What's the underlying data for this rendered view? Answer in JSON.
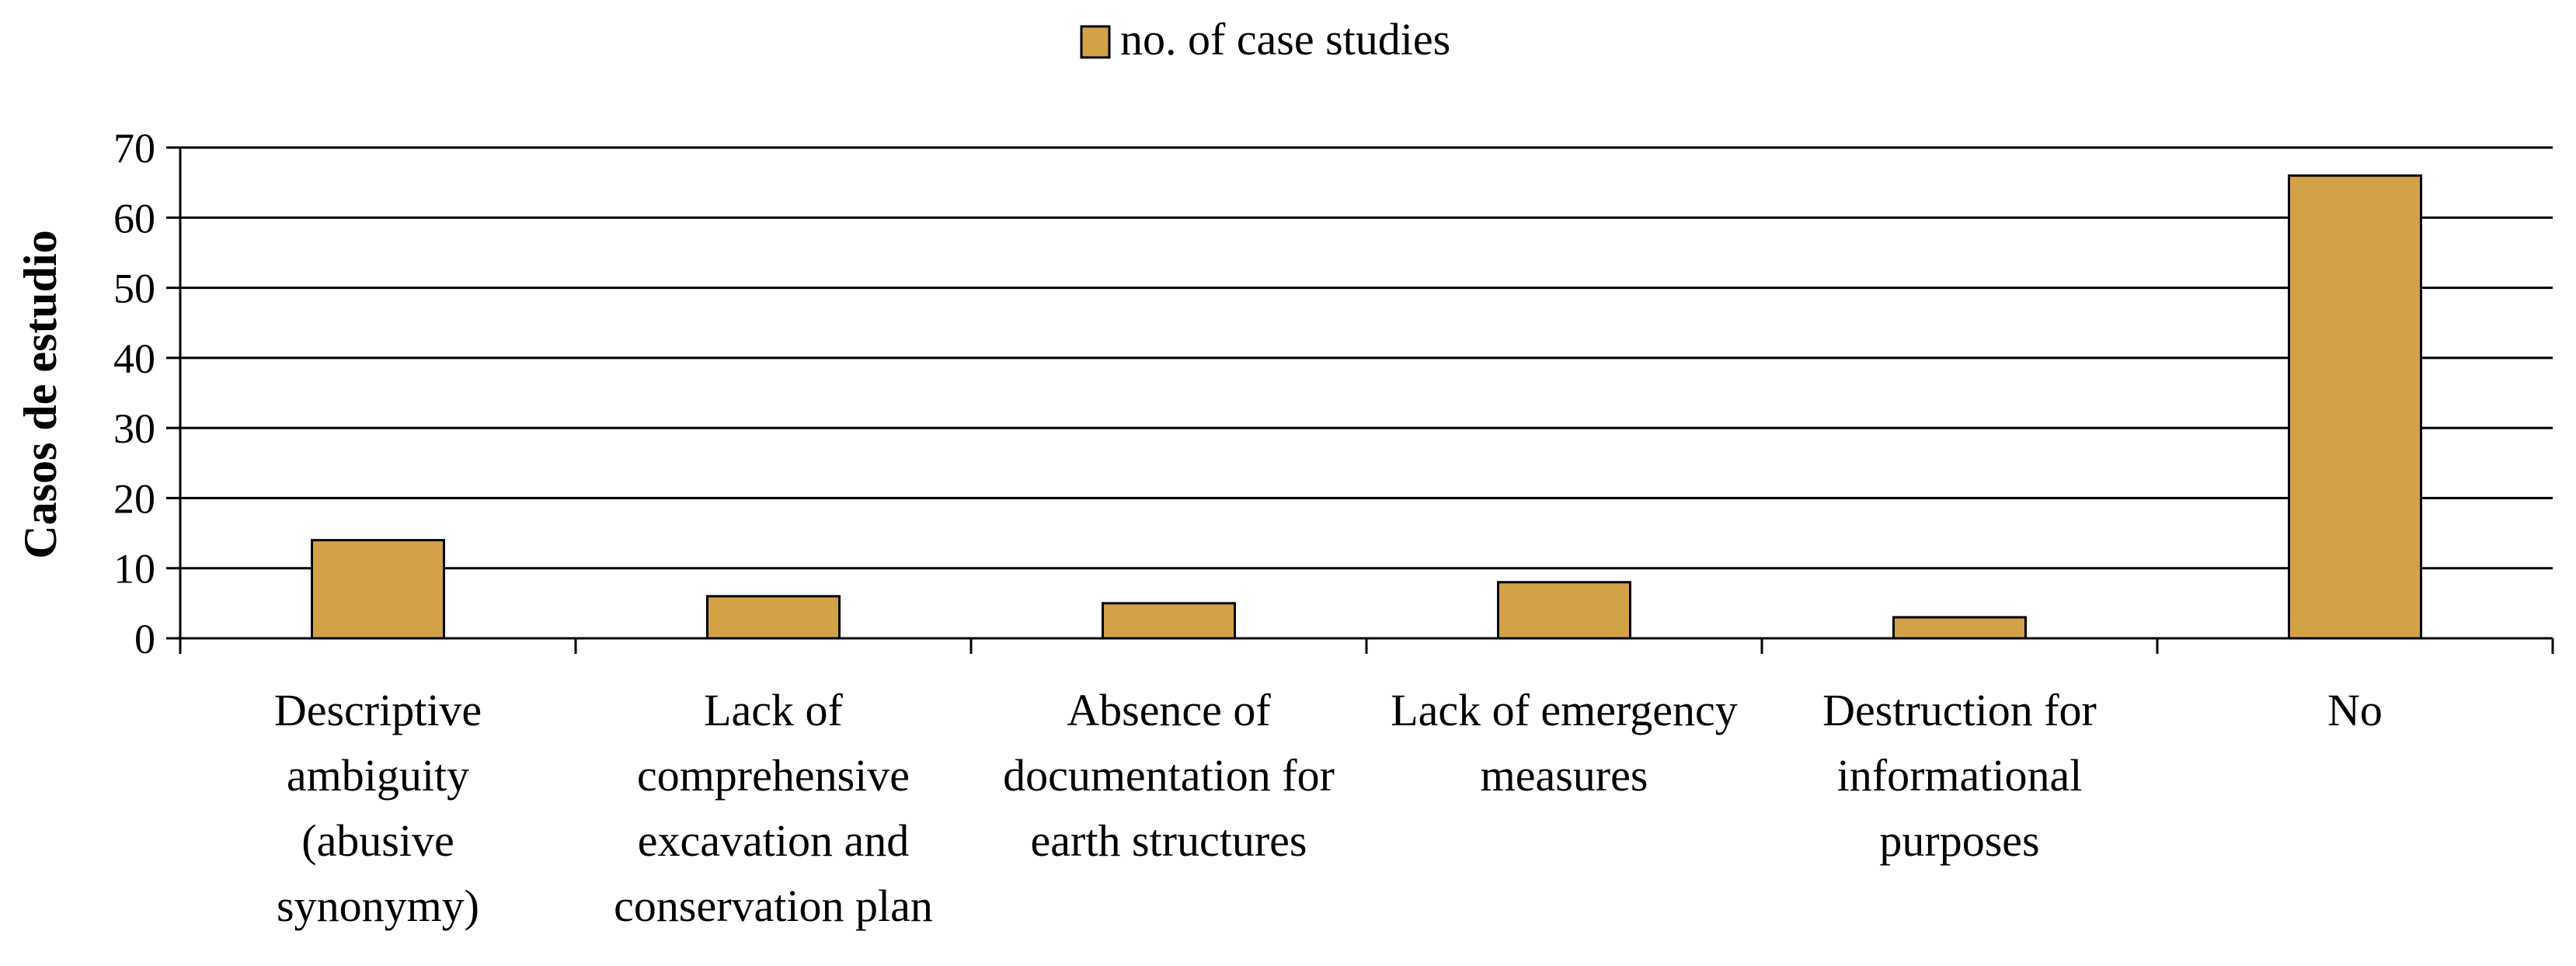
{
  "chart_data": {
    "type": "bar",
    "title": "",
    "xlabel": "",
    "ylabel": "Casos de estudio",
    "ylim": [
      0,
      70
    ],
    "yticks": [
      0,
      10,
      20,
      30,
      40,
      50,
      60,
      70
    ],
    "grid": true,
    "legend_position": "top-center",
    "categories": [
      [
        "Descriptive",
        "ambiguity",
        "(abusive",
        "synonymy)"
      ],
      [
        "Lack of",
        "comprehensive",
        "excavation and",
        "conservation plan"
      ],
      [
        "Absence of",
        "documentation for",
        "earth structures"
      ],
      [
        "Lack of emergency",
        "measures"
      ],
      [
        "Destruction for",
        "informational",
        "purposes"
      ],
      [
        "No"
      ]
    ],
    "series": [
      {
        "name": "no. of case studies",
        "color": "#D4A246",
        "values": [
          14,
          6,
          5,
          8,
          3,
          66
        ]
      }
    ]
  }
}
